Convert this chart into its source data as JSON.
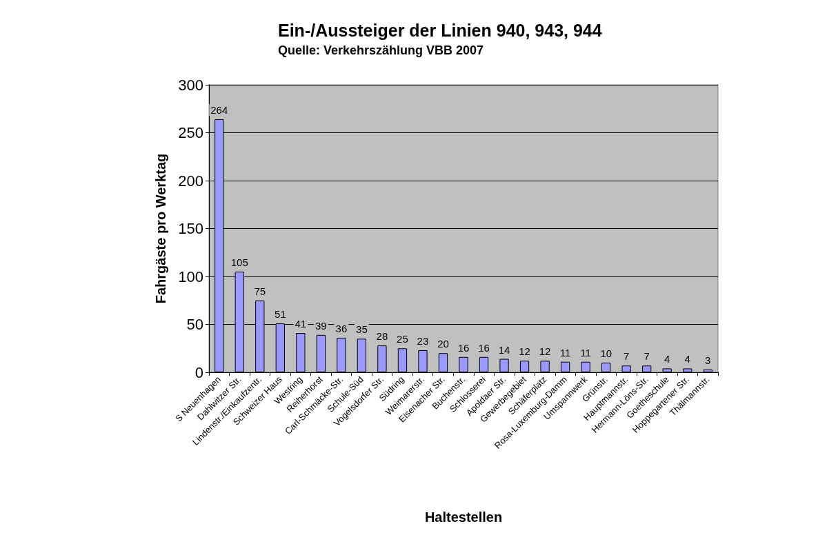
{
  "chart_data": {
    "type": "bar",
    "title": "Ein-/Aussteiger der Linien 940, 943, 944",
    "subtitle": "Quelle: Verkehrszählung VBB 2007",
    "xlabel": "Haltestellen",
    "ylabel": "Fahrgäste pro Werktag",
    "categories": [
      "S Neuenhagen",
      "Dahlwitzer Str.",
      "Lindenstr./Einkaufzentr.",
      "Schweizer Haus",
      "Westring",
      "Reiherhorst",
      "Carl-Schmäcke-Str.",
      "Schule-Süd",
      "Vogelsdorfer Str.",
      "Südring",
      "Weimarerstr.",
      "Eisenacher Str.",
      "Buchenstr.",
      "Schlosserei",
      "Apoldaer Str.",
      "Gewerbegebiet",
      "Schäferplatz",
      "Rosa-Luxemburg-Damm",
      "Umspannwerk",
      "Grünstr.",
      "Hauptmannstr.",
      "Hermann-Löns-Str.",
      "Goetheschule",
      "Hoppegartener Str.",
      "Thälmannstr."
    ],
    "values": [
      264,
      105,
      75,
      51,
      41,
      39,
      36,
      35,
      28,
      25,
      23,
      20,
      16,
      16,
      14,
      12,
      12,
      11,
      11,
      10,
      7,
      7,
      4,
      4,
      3
    ],
    "color": "#9999ff",
    "ylim": [
      0,
      300
    ],
    "yticks": [
      0,
      50,
      100,
      150,
      200,
      250,
      300
    ],
    "grid": "y",
    "data_labels": true
  }
}
